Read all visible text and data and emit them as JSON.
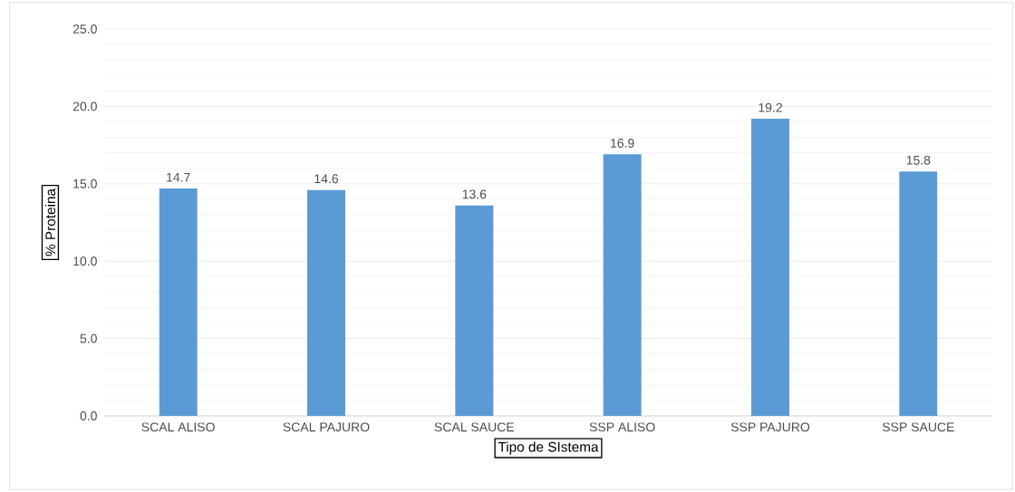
{
  "chart_data": {
    "type": "bar",
    "xlabel": "Tipo de SIstema",
    "ylabel": "% Proteina",
    "categories": [
      "SCAL ALISO",
      "SCAL PAJURO",
      "SCAL SAUCE",
      "SSP ALISO",
      "SSP PAJURO",
      "SSP SAUCE"
    ],
    "values": [
      14.7,
      14.6,
      13.6,
      16.9,
      19.2,
      15.8
    ],
    "color": "#5b9bd5",
    "ylim": [
      0,
      25
    ],
    "yticks": [
      {
        "value": 0,
        "label": "0.0"
      },
      {
        "value": 5,
        "label": "5.0"
      },
      {
        "value": 10,
        "label": "10.0"
      },
      {
        "value": 15,
        "label": "15.0"
      },
      {
        "value": 20,
        "label": "20.0"
      },
      {
        "value": 25,
        "label": "25.0"
      }
    ],
    "grid": "y",
    "data_labels": true
  }
}
